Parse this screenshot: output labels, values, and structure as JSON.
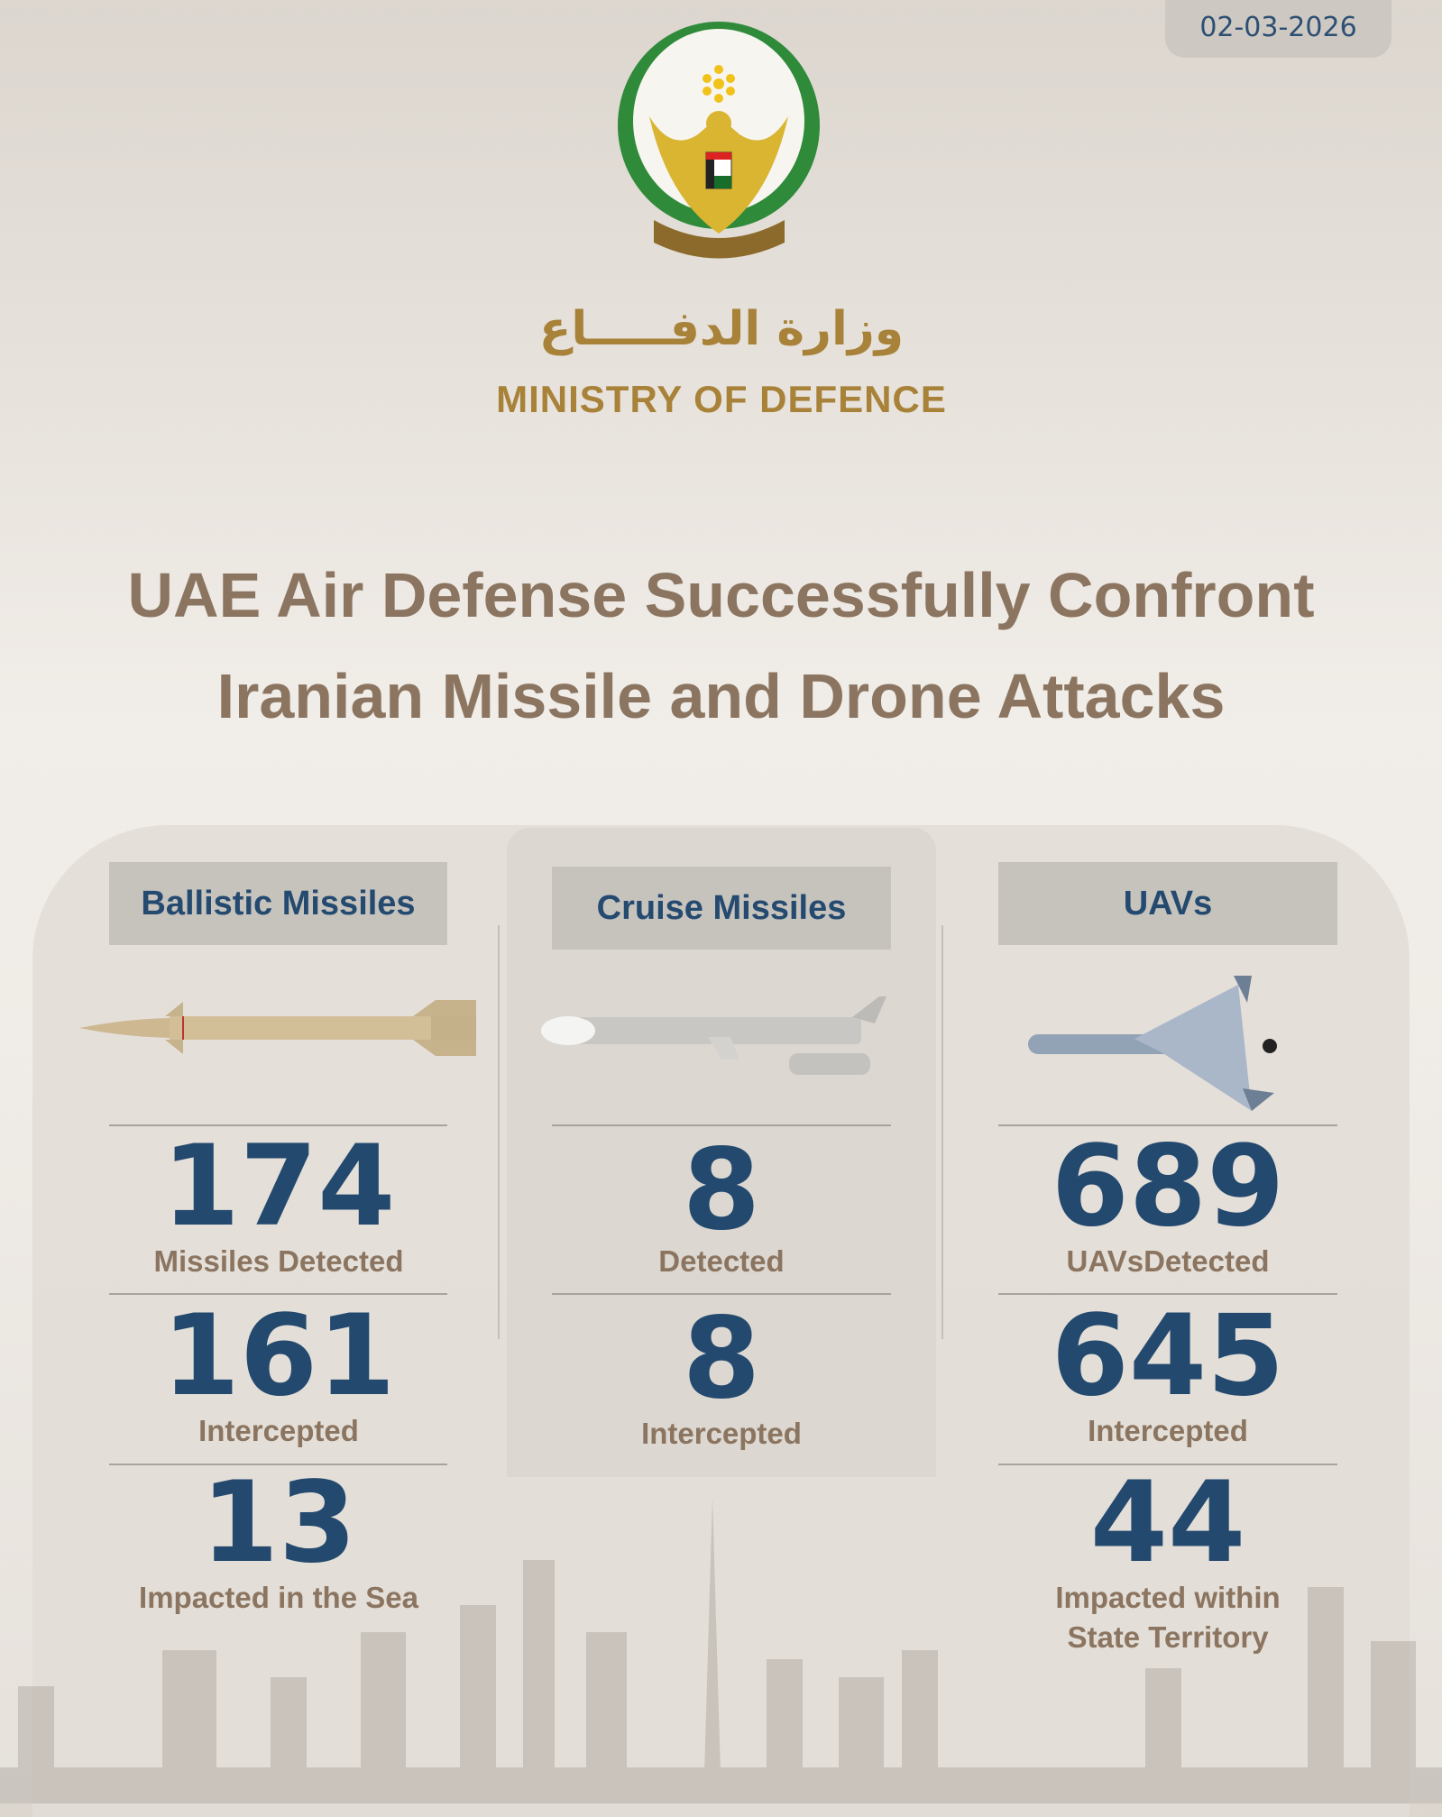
{
  "date": "02-03-2026",
  "ministry": {
    "arabic": "وزارة الدفـــــاع",
    "english": "MINISTRY OF DEFENCE"
  },
  "title": {
    "line1": "UAE Air Defense Successfully Confront",
    "line2": "Iranian Missile and Drone Attacks"
  },
  "colors": {
    "number": "#23496f",
    "label": "#8b7560",
    "header_bg": "#c6c2bc",
    "gold": "#a88238"
  },
  "columns": [
    {
      "header": "Ballistic Missiles",
      "icon": "ballistic-missile-image",
      "stats": [
        {
          "value": "174",
          "label": "Missiles Detected"
        },
        {
          "value": "161",
          "label": "Intercepted"
        },
        {
          "value": "13",
          "label": "Impacted in the Sea"
        }
      ]
    },
    {
      "header": "Cruise Missiles",
      "icon": "cruise-missile-image",
      "stats": [
        {
          "value": "8",
          "label": "Detected"
        },
        {
          "value": "8",
          "label": "Intercepted"
        }
      ]
    },
    {
      "header": "UAVs",
      "icon": "drone-image",
      "stats": [
        {
          "value": "689",
          "label": "UAVsDetected"
        },
        {
          "value": "645",
          "label": "Intercepted"
        },
        {
          "value": "44",
          "label": "Impacted within",
          "label2": "State Territory"
        }
      ]
    }
  ]
}
